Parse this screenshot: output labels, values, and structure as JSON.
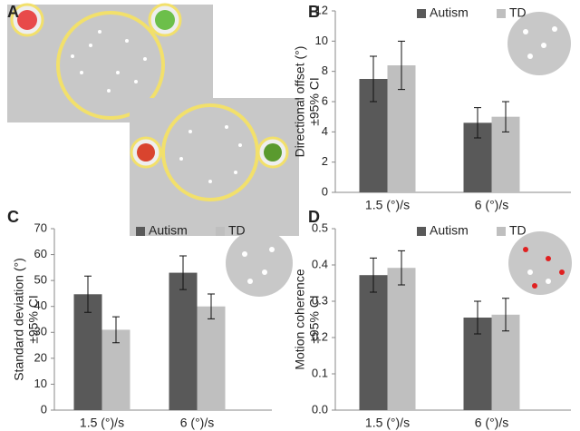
{
  "chart_data": [
    {
      "type": "illustration",
      "panel_label": "A"
    },
    {
      "type": "bar",
      "panel_label": "B",
      "ylabel": [
        "Directional offset (°)",
        "±95% CI"
      ],
      "categories": [
        "1.5 (°)/s",
        "6 (°)/s"
      ],
      "series": [
        {
          "name": "Autism",
          "color": "#595959",
          "values": [
            7.5,
            4.6
          ],
          "errors": [
            1.5,
            1.0
          ]
        },
        {
          "name": "TD",
          "color": "#bfbfbf",
          "values": [
            8.4,
            5.0
          ],
          "errors": [
            1.6,
            1.0
          ]
        }
      ],
      "ylim": [
        0,
        12
      ],
      "yticks": [
        0,
        2,
        4,
        6,
        8,
        10,
        12
      ],
      "grid": false,
      "legend": "top"
    },
    {
      "type": "bar",
      "panel_label": "C",
      "ylabel": [
        "Standard deviation (°)",
        "±95% CI"
      ],
      "categories": [
        "1.5 (°)/s",
        "6 (°)/s"
      ],
      "series": [
        {
          "name": "Autism",
          "color": "#595959",
          "values": [
            44.7,
            53
          ],
          "errors": [
            7,
            6.5
          ]
        },
        {
          "name": "TD",
          "color": "#bfbfbf",
          "values": [
            31,
            40
          ],
          "errors": [
            5,
            4.8
          ]
        }
      ],
      "ylim": [
        0,
        70
      ],
      "yticks": [
        0,
        10,
        20,
        30,
        40,
        50,
        60,
        70
      ],
      "grid": false,
      "legend": "top"
    },
    {
      "type": "bar",
      "panel_label": "D",
      "ylabel": [
        "Motion coherence",
        "±95% CI"
      ],
      "categories": [
        "1.5 (°)/s",
        "6 (°)/s"
      ],
      "series": [
        {
          "name": "Autism",
          "color": "#595959",
          "values": [
            0.372,
            0.255
          ],
          "errors": [
            0.047,
            0.045
          ]
        },
        {
          "name": "TD",
          "color": "#bfbfbf",
          "values": [
            0.392,
            0.263
          ],
          "errors": [
            0.047,
            0.045
          ]
        }
      ],
      "ylim": [
        0,
        0.5
      ],
      "yticks": [
        {
          "value": 0,
          "label": "0.0"
        },
        0.1,
        0.2,
        0.3,
        0.4,
        0.5
      ],
      "grid": false,
      "legend": "top"
    }
  ]
}
